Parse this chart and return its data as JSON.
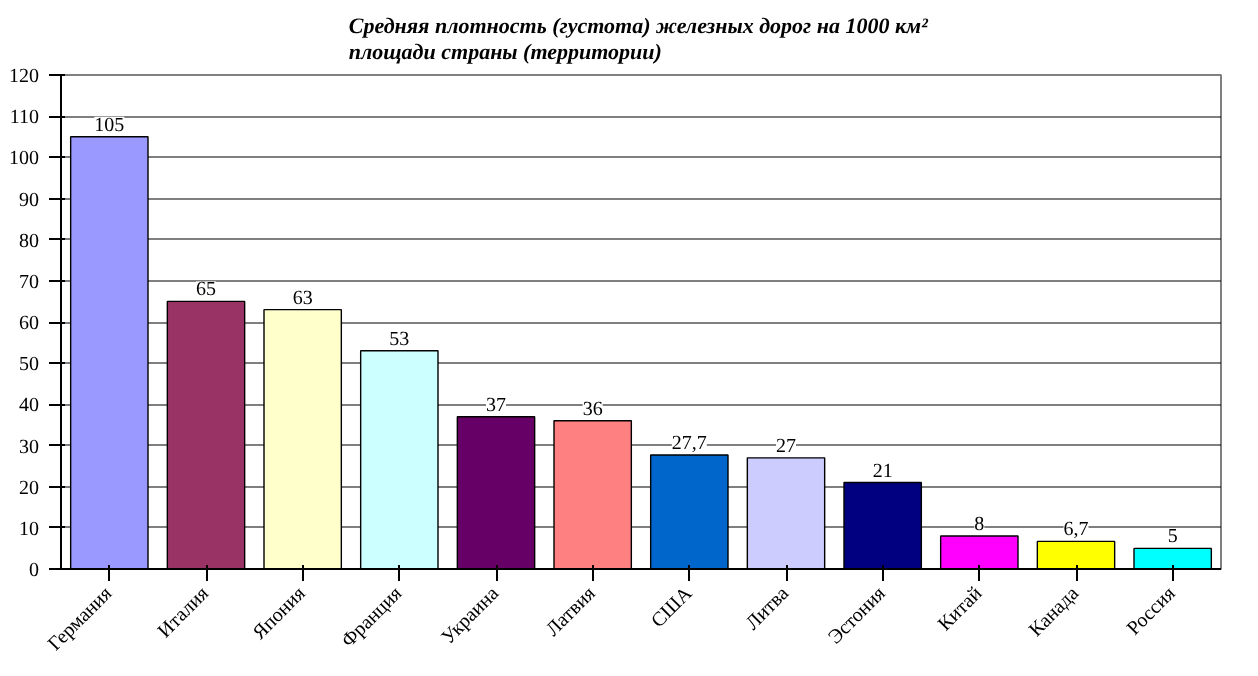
{
  "chart_data": {
    "type": "bar",
    "title": "Средняя плотность (густота) железных дорог на  1000 км²\nплощади страны (территории)",
    "categories": [
      "Германия",
      "Италия",
      "Япония",
      "Франция",
      "Украина",
      "Латвия",
      "США",
      "Литва",
      "Эстония",
      "Китай",
      "Канада",
      "Россия"
    ],
    "values": [
      105,
      65,
      63,
      53,
      37,
      36,
      27.7,
      27,
      21,
      8,
      6.7,
      5
    ],
    "value_labels": [
      "105",
      "65",
      "63",
      "53",
      "37",
      "36",
      "27,7",
      "27",
      "21",
      "8",
      "6,7",
      "5"
    ],
    "colors": [
      "#9999ff",
      "#993366",
      "#ffffcc",
      "#ccffff",
      "#660066",
      "#ff8080",
      "#0066cc",
      "#ccccff",
      "#000080",
      "#ff00ff",
      "#ffff00",
      "#00ffff"
    ],
    "ylim": [
      0,
      120
    ],
    "yticks": [
      0,
      10,
      20,
      30,
      40,
      50,
      60,
      70,
      80,
      90,
      100,
      110,
      120
    ],
    "grid": "y"
  }
}
